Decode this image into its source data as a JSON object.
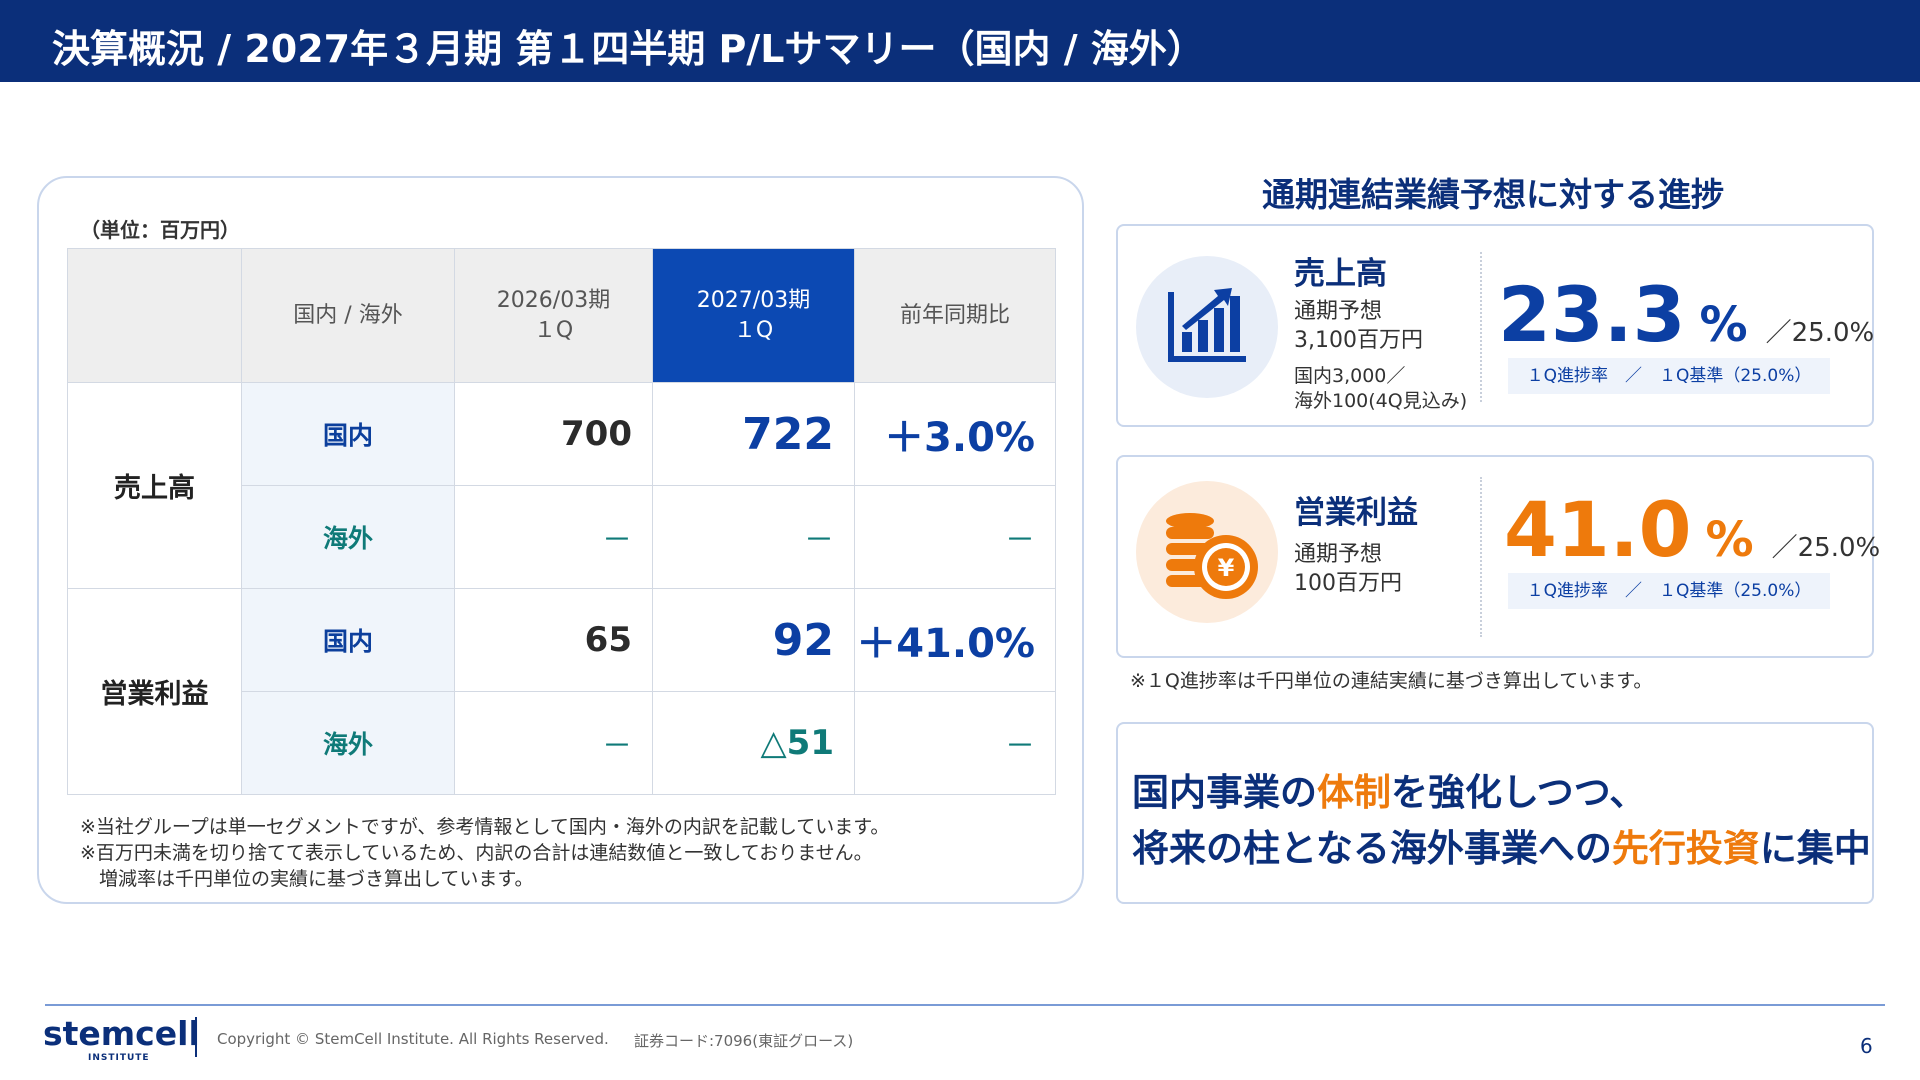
{
  "header": {
    "title": "決算概況 / 2027年３月期 第１四半期 P/Lサマリー（国内 / 海外）"
  },
  "table": {
    "unit": "（単位：百万円）",
    "headers": [
      "",
      "国内 / 海外",
      "2026/03期\n１Q",
      "2027/03期\n１Q",
      "前年同期比"
    ],
    "rows": [
      {
        "category": "売上高",
        "region": "国内",
        "prev": "700",
        "current": "722",
        "yoy": "＋3.0%"
      },
      {
        "category": "売上高",
        "region": "海外",
        "prev": "－",
        "current": "－",
        "yoy": "－"
      },
      {
        "category": "営業利益",
        "region": "国内",
        "prev": "65",
        "current": "92",
        "yoy": "＋41.0%"
      },
      {
        "category": "営業利益",
        "region": "海外",
        "prev": "－",
        "current": "△51",
        "yoy": "－"
      }
    ],
    "notes": [
      "※当社グループは単一セグメントですが、参考情報として国内・海外の内訳を記載しています。",
      "※百万円未満を切り捨てて表示しているため、内訳の合計は連結数値と一致しておりません。",
      "　増減率は千円単位の実績に基づき算出しています。"
    ]
  },
  "progress": {
    "title": "通期連結業績予想に対する進捗",
    "cards": [
      {
        "name": "売上高",
        "icon": "bar-chart-growth-icon",
        "forecast_label": "通期予想",
        "forecast_value": "3,100百万円",
        "breakdown_1": "国内3,000／",
        "breakdown_2": "海外100(4Q見込み)",
        "rate": "23.3",
        "percent": "%",
        "benchmark": "／25.0%",
        "caption": "１Q進捗率　／　１Q基準（25.0%）"
      },
      {
        "name": "営業利益",
        "icon": "yen-coins-icon",
        "forecast_label": "通期予想",
        "forecast_value": "100百万円",
        "rate": "41.0",
        "percent": "%",
        "benchmark": "／25.0%",
        "caption": "１Q進捗率　／　１Q基準（25.0%）"
      }
    ],
    "note": "※１Q進捗率は千円単位の連結実績に基づき算出しています。"
  },
  "message": {
    "line1_a": "国内事業の",
    "line1_em": "体制",
    "line1_b": "を強化しつつ、",
    "line2_a": "将来の柱となる海外事業への",
    "line2_em": "先行投資",
    "line2_b": "に集中"
  },
  "footer": {
    "logo": "stemcell",
    "logo_sub": "INSTITUTE",
    "copyright": "Copyright © StemCell Institute. All Rights Reserved.",
    "stock_code": "証券コード:7096(東証グロース)",
    "page": "6"
  },
  "colors": {
    "navy": "#0b2f7a",
    "blue": "#0c3fa3",
    "teal": "#0f7a78",
    "orange": "#ee7a0c"
  }
}
